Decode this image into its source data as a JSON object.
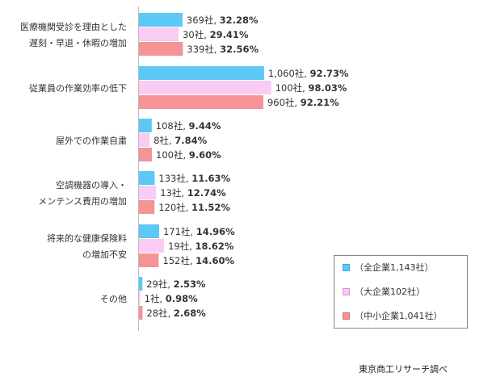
{
  "chart_data": {
    "type": "bar",
    "orientation": "horizontal",
    "categories": [
      [
        "医療機関受診を理由とした",
        "遅刻・早退・休暇の増加"
      ],
      [
        "従業員の作業効率の低下"
      ],
      [
        "屋外での作業自粛"
      ],
      [
        "空調機器の導入・",
        "メンテンス費用の増加"
      ],
      [
        "将来的な健康保険料",
        "の増加不安"
      ],
      [
        "その他"
      ]
    ],
    "series": [
      {
        "name": "（全企業1,143社）",
        "color": "#5BC8F5",
        "counts": [
          "369社",
          "1,060社",
          "108社",
          "133社",
          "171社",
          "29社"
        ],
        "values": [
          32.28,
          92.73,
          9.44,
          11.63,
          14.96,
          2.53
        ],
        "pct_labels": [
          "32.28%",
          "92.73%",
          "9.44%",
          "11.63%",
          "14.96%",
          "2.53%"
        ]
      },
      {
        "name": "（大企業102社）",
        "color": "#FACBF3",
        "counts": [
          "30社",
          "100社",
          "8社",
          "13社",
          "19社",
          "1社"
        ],
        "values": [
          29.41,
          98.03,
          7.84,
          12.74,
          18.62,
          0.98
        ],
        "pct_labels": [
          "29.41%",
          "98.03%",
          "7.84%",
          "12.74%",
          "18.62%",
          "0.98%"
        ]
      },
      {
        "name": "（中小企業1,041社）",
        "color": "#F49495",
        "counts": [
          "339社",
          "960社",
          "100社",
          "120社",
          "152社",
          "28社"
        ],
        "values": [
          32.56,
          92.21,
          9.6,
          11.52,
          14.6,
          2.68
        ],
        "pct_labels": [
          "32.56%",
          "92.21%",
          "9.60%",
          "11.52%",
          "14.60%",
          "2.68%"
        ]
      }
    ],
    "xlim": [
      0,
      100
    ],
    "grid": false,
    "legend_position": "bottom-right"
  },
  "source_text": "東京商工リサーチ調べ"
}
